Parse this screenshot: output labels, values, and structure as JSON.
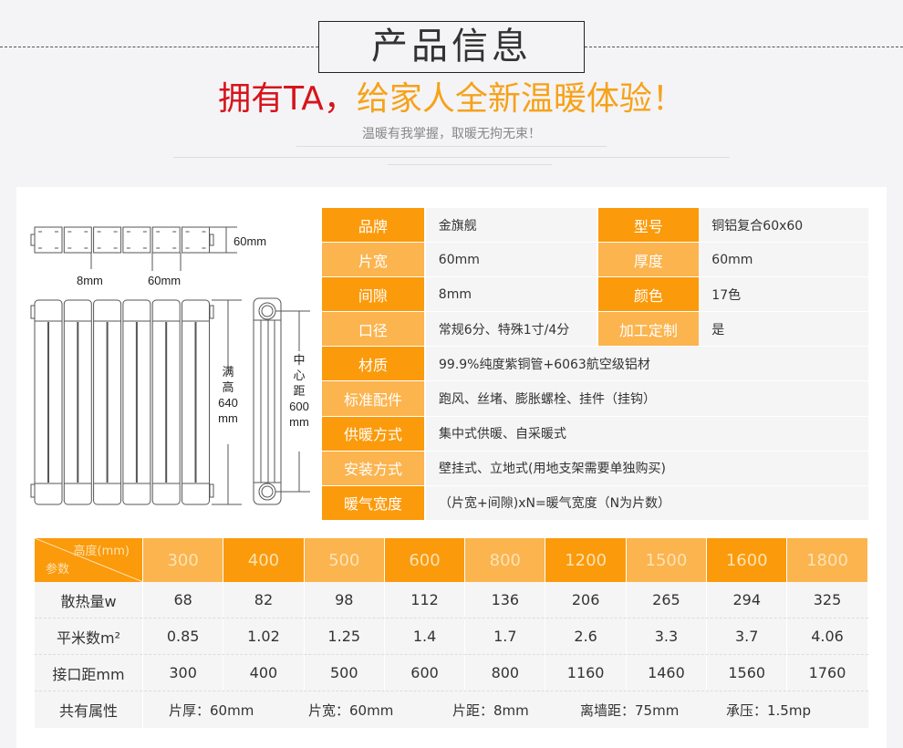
{
  "header": {
    "title": "产品信息",
    "slogan_red": "拥有TA，",
    "slogan_orange": "给家人全新温暖体验！",
    "subtitle": "温暖有我掌握，取暖无拘无束！"
  },
  "colors": {
    "orange_dark": "#fb9a0b",
    "orange_light": "#fbb44e",
    "slogan_red": "#d7141c",
    "slogan_orange": "#f6a21a"
  },
  "diagram": {
    "depth": "60mm",
    "gap": "8mm",
    "width": "60mm",
    "full_height_label": [
      "满",
      "高",
      "640",
      "mm"
    ],
    "center_label": [
      "中",
      "心",
      "距",
      "600",
      "mm"
    ]
  },
  "specs": [
    {
      "label": "品牌",
      "value": "金旗舰",
      "label2": "型号",
      "value2": "铜铝复合60x60"
    },
    {
      "label": "片宽",
      "value": "60mm",
      "label2": "厚度",
      "value2": "60mm"
    },
    {
      "label": "间隙",
      "value": "8mm",
      "label2": "颜色",
      "value2": "17色"
    },
    {
      "label": "口径",
      "value": "常规6分、特殊1寸/4分",
      "label2": "加工定制",
      "value2": "是"
    },
    {
      "label": "材质",
      "value": "99.9%纯度紫铜管+6063航空级铝材"
    },
    {
      "label": "标准配件",
      "value": "跑风、丝堵、膨胀螺栓、挂件（挂钩）"
    },
    {
      "label": "供暖方式",
      "value": "集中式供暖、自采暖式"
    },
    {
      "label": "安装方式",
      "value": "壁挂式、立地式(用地支架需要单独购买)"
    },
    {
      "label": "暖气宽度",
      "value": "（片宽+间隙)xN=暖气宽度（N为片数）"
    }
  ],
  "params": {
    "corner_top": "高度(mm)",
    "corner_bottom": "参数",
    "heights": [
      "300",
      "400",
      "500",
      "600",
      "800",
      "1200",
      "1500",
      "1600",
      "1800"
    ],
    "rows": [
      {
        "label": "散热量w",
        "values": [
          "68",
          "82",
          "98",
          "112",
          "136",
          "206",
          "265",
          "294",
          "325"
        ]
      },
      {
        "label": "平米数m²",
        "values": [
          "0.85",
          "1.02",
          "1.25",
          "1.4",
          "1.7",
          "2.6",
          "3.3",
          "3.7",
          "4.06"
        ]
      },
      {
        "label": "接口距mm",
        "values": [
          "300",
          "400",
          "500",
          "600",
          "800",
          "1160",
          "1460",
          "1560",
          "1760"
        ]
      }
    ],
    "common_label": "共有属性",
    "common": [
      "片厚：60mm",
      "片宽：60mm",
      "片距：8mm",
      "离墙距：75mm",
      "承压：1.5mp"
    ]
  }
}
